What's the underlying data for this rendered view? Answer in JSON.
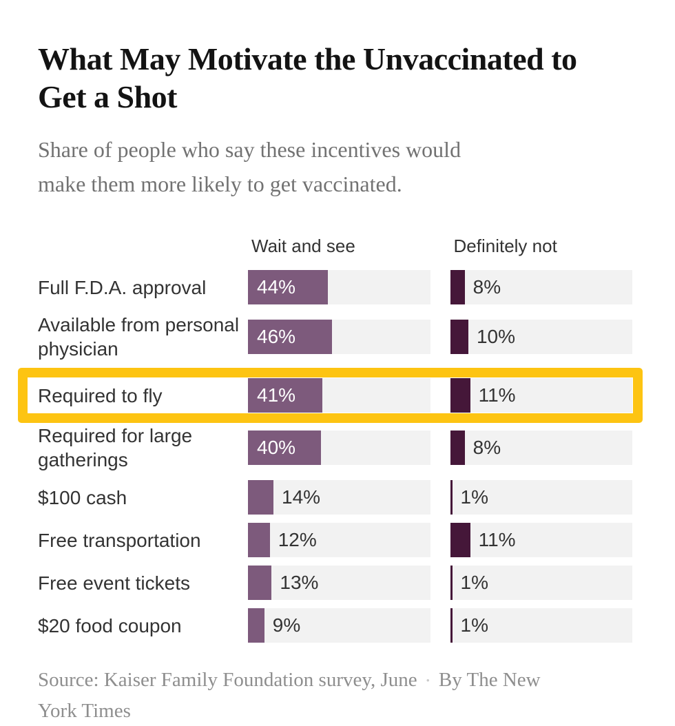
{
  "header": {
    "title_lines": [
      "What May Motivate the Unvaccinated to",
      "Get a Shot"
    ],
    "subtitle_lines": [
      "Share of people who say these incentives would",
      "make them more likely to get vaccinated."
    ]
  },
  "chart_data": {
    "type": "bar",
    "orientation": "horizontal",
    "title": "What May Motivate the Unvaccinated to Get a Shot",
    "subtitle": "Share of people who say these incentives would make them more likely to get vaccinated.",
    "categories": [
      "Full F.D.A. approval",
      "Available from personal physician",
      "Required to fly",
      "Required for large gatherings",
      "$100 cash",
      "Free transportation",
      "Free event tickets",
      "$20 food coupon"
    ],
    "series": [
      {
        "name": "Wait and see",
        "color": "#7d5a7c",
        "values": [
          44,
          46,
          41,
          40,
          14,
          12,
          13,
          9
        ]
      },
      {
        "name": "Definitely not",
        "color": "#451739",
        "values": [
          8,
          10,
          11,
          8,
          1,
          11,
          1,
          1
        ]
      }
    ],
    "value_suffix": "%",
    "xlim": [
      0,
      100
    ],
    "grid": false,
    "legend_position": "column-headers",
    "highlighted_category": "Required to fly"
  },
  "footer": {
    "source": "Source: Kaiser Family Foundation survey, June",
    "separator": "•",
    "byline": "By The New York Times"
  },
  "colors": {
    "wait_and_see_bar": "#7d5a7c",
    "definitely_not_bar": "#451739",
    "bar_track": "#f2f2f2",
    "highlight_box": "#fdc412",
    "title_text": "#131313",
    "subtitle_text": "#727272",
    "label_text": "#333333",
    "source_text": "#8e8e8e"
  }
}
